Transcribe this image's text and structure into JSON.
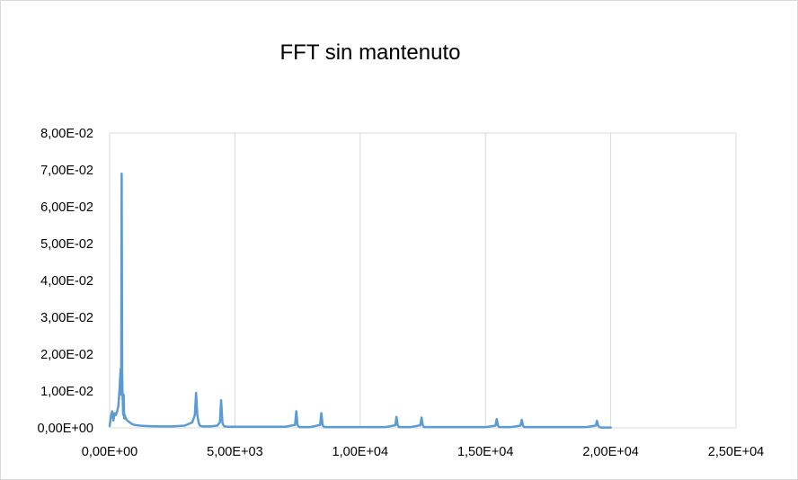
{
  "chart_data": {
    "type": "line",
    "title": "FFT sin mantenuto",
    "xlabel": "",
    "ylabel": "",
    "xlim": [
      0,
      25000
    ],
    "ylim": [
      0,
      0.08
    ],
    "grid": "vertical",
    "legend": "none",
    "x_ticks": [
      {
        "value": 0,
        "label": "0,00E+00"
      },
      {
        "value": 5000,
        "label": "5,00E+03"
      },
      {
        "value": 10000,
        "label": "1,00E+04"
      },
      {
        "value": 15000,
        "label": "1,50E+04"
      },
      {
        "value": 20000,
        "label": "2,00E+04"
      },
      {
        "value": 25000,
        "label": "2,50E+04"
      }
    ],
    "y_ticks": [
      {
        "value": 0,
        "label": "0,00E+00"
      },
      {
        "value": 0.01,
        "label": "1,00E-02"
      },
      {
        "value": 0.02,
        "label": "2,00E-02"
      },
      {
        "value": 0.03,
        "label": "3,00E-02"
      },
      {
        "value": 0.04,
        "label": "4,00E-02"
      },
      {
        "value": 0.05,
        "label": "5,00E-02"
      },
      {
        "value": 0.06,
        "label": "6,00E-02"
      },
      {
        "value": 0.07,
        "label": "7,00E-02"
      },
      {
        "value": 0.08,
        "label": "8,00E-02"
      }
    ],
    "series": [
      {
        "color": "#5b9bd5",
        "x": [
          0,
          50,
          100,
          150,
          200,
          250,
          300,
          350,
          400,
          440,
          460,
          480,
          500,
          520,
          540,
          560,
          580,
          600,
          650,
          700,
          800,
          900,
          1000,
          1200,
          1500,
          2000,
          2500,
          3000,
          3300,
          3400,
          3450,
          3500,
          3550,
          3600,
          3700,
          4000,
          4300,
          4400,
          4450,
          4500,
          4550,
          4600,
          4700,
          5000,
          6000,
          7000,
          7400,
          7450,
          7500,
          7550,
          7600,
          8000,
          8400,
          8450,
          8500,
          8550,
          8600,
          9000,
          10000,
          11000,
          11400,
          11450,
          11500,
          11550,
          11600,
          12000,
          12400,
          12450,
          12500,
          12550,
          12600,
          13000,
          14000,
          15000,
          15400,
          15450,
          15500,
          15550,
          15600,
          16000,
          16400,
          16450,
          16500,
          16550,
          16600,
          17000,
          18000,
          19000,
          19400,
          19450,
          19500,
          19550,
          19600,
          20000
        ],
        "y": [
          0.0005,
          0.003,
          0.0045,
          0.002,
          0.004,
          0.0035,
          0.0045,
          0.006,
          0.011,
          0.016,
          0.009,
          0.069,
          0.015,
          0.008,
          0.0035,
          0.009,
          0.0025,
          0.0035,
          0.0025,
          0.002,
          0.0015,
          0.001,
          0.0008,
          0.0006,
          0.0005,
          0.0004,
          0.0004,
          0.0006,
          0.0015,
          0.0035,
          0.0095,
          0.0035,
          0.0015,
          0.0006,
          0.0004,
          0.0004,
          0.0006,
          0.0015,
          0.0075,
          0.0015,
          0.0006,
          0.0004,
          0.0003,
          0.0003,
          0.0003,
          0.0003,
          0.0008,
          0.0045,
          0.0008,
          0.0003,
          0.0002,
          0.0002,
          0.0008,
          0.004,
          0.0008,
          0.0003,
          0.0002,
          0.0002,
          0.0002,
          0.0002,
          0.0007,
          0.003,
          0.0007,
          0.0002,
          0.0002,
          0.0002,
          0.0007,
          0.0028,
          0.0007,
          0.0002,
          0.0002,
          0.0002,
          0.0002,
          0.0002,
          0.0006,
          0.0024,
          0.0006,
          0.0002,
          0.0002,
          0.0002,
          0.0006,
          0.0022,
          0.0006,
          0.0002,
          0.0002,
          0.0002,
          0.0002,
          0.0002,
          0.0006,
          0.0019,
          0.0006,
          0.0002,
          0.0001,
          0.0001
        ]
      }
    ]
  }
}
